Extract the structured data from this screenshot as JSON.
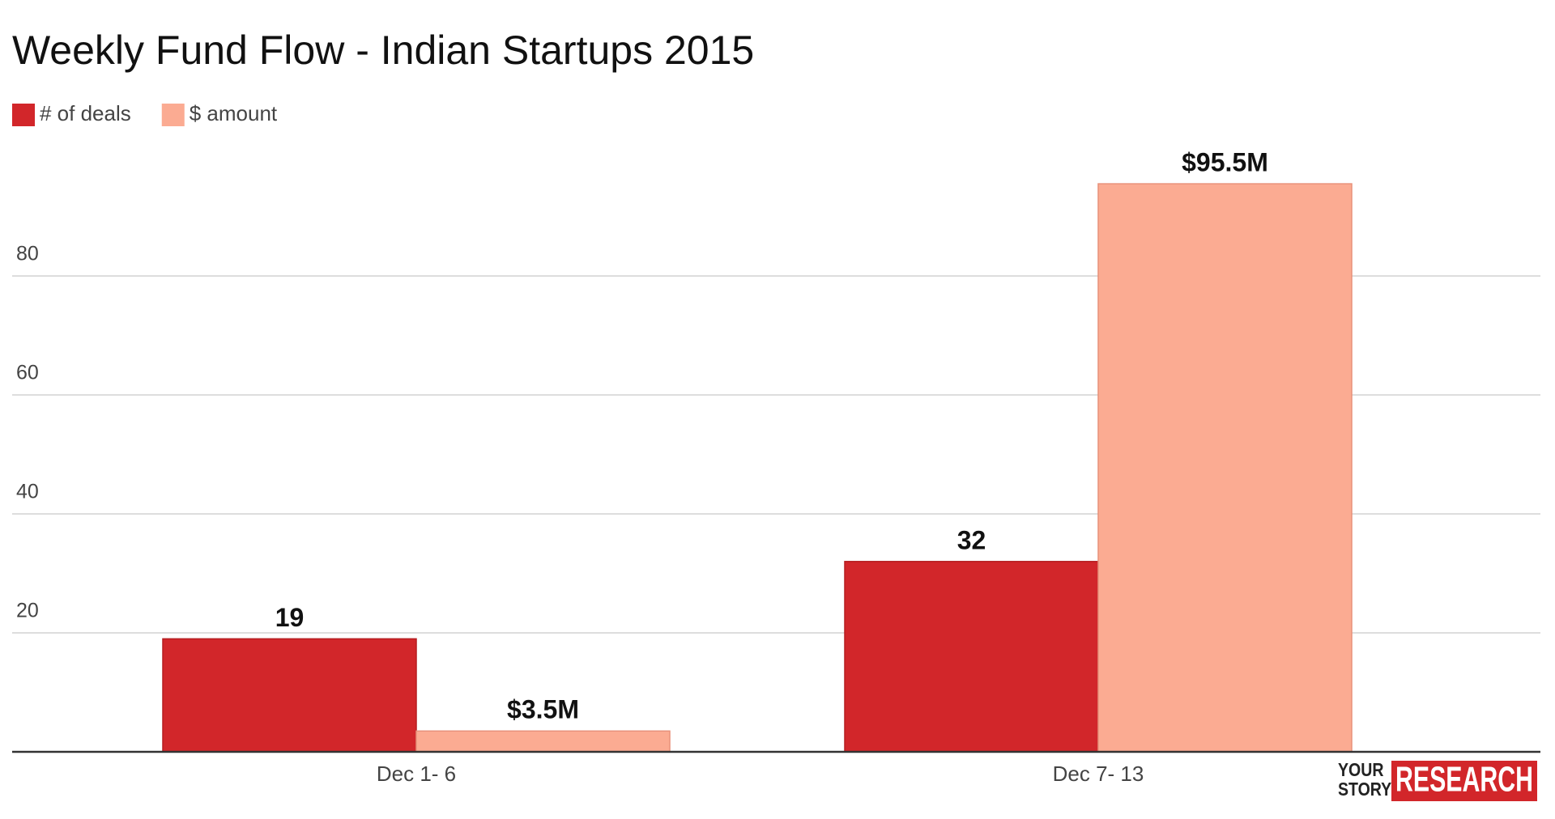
{
  "chart_data": {
    "type": "bar",
    "title": "Weekly Fund Flow - Indian Startups 2015",
    "categories": [
      "Dec 1- 6",
      "Dec 7- 13"
    ],
    "series": [
      {
        "name": "# of deals",
        "color": "#d2262a",
        "values": [
          19,
          32
        ],
        "value_labels": [
          "19",
          "32"
        ]
      },
      {
        "name": "$ amount",
        "color": "#fbab92",
        "values": [
          3.5,
          95.5
        ],
        "value_labels": [
          "$3.5M",
          "$95.5M"
        ]
      }
    ],
    "ylim": [
      0,
      100
    ],
    "yticks": [
      20,
      40,
      60,
      80
    ],
    "grid": true,
    "legend": "top-left"
  },
  "logo": {
    "line1": "YOUR",
    "line2": "STORY",
    "word": "RESEARCH"
  }
}
